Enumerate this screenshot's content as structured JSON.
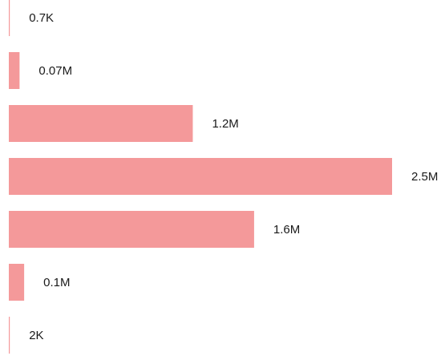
{
  "chart_data": {
    "type": "bar",
    "orientation": "horizontal",
    "bar_color": "#f4999a",
    "axis_color": "#e0888a",
    "categories": [
      "",
      "",
      "",
      "",
      "",
      "",
      ""
    ],
    "values": [
      700,
      70000,
      1200000,
      2500000,
      1600000,
      100000,
      2000
    ],
    "data_labels": [
      "0.7K",
      "0.07M",
      "1.2M",
      "2.5M",
      "1.6M",
      "0.1M",
      "2K"
    ],
    "title": "",
    "xlabel": "",
    "ylabel": "",
    "xlim": [
      0,
      2500000
    ],
    "grid": false,
    "legend": "none"
  }
}
